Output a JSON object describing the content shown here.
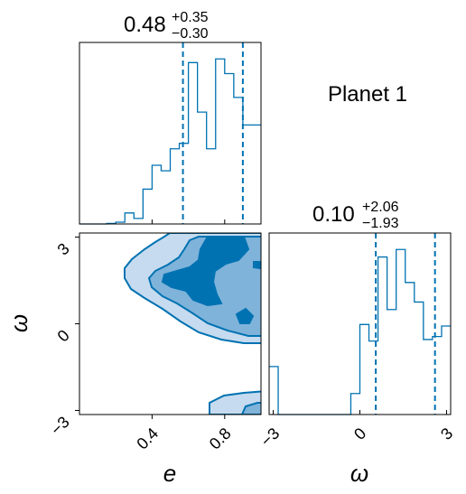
{
  "chart_data": {
    "type": "corner",
    "title": "Planet 1",
    "color": "#0072b2",
    "parameters": [
      {
        "name": "e",
        "xlabel": "e",
        "title_value": "0.48",
        "title_plus": "+0.35",
        "title_minus": "−0.30",
        "range": [
          0.0,
          1.0
        ],
        "ticks": [
          0.4,
          0.8
        ],
        "tick_labels": [
          "0.4",
          "0.8"
        ],
        "quantiles": [
          0.57,
          0.9
        ],
        "hist": {
          "edges": [
            0.0,
            0.05,
            0.1,
            0.15,
            0.2,
            0.25,
            0.3,
            0.35,
            0.4,
            0.45,
            0.5,
            0.55,
            0.6,
            0.65,
            0.7,
            0.75,
            0.8,
            0.85,
            0.9,
            0.95,
            1.0
          ],
          "counts": [
            0,
            0,
            0,
            0.003,
            0.01,
            0.06,
            0.03,
            0.19,
            0.32,
            0.29,
            0.41,
            0.44,
            0.88,
            0.61,
            0.41,
            0.9,
            0.82,
            0.69,
            0.54,
            0.54
          ]
        }
      },
      {
        "name": "ω",
        "xlabel": "ω",
        "ylabel": "ω",
        "title_value": "0.10",
        "title_plus": "+2.06",
        "title_minus": "−1.93",
        "range": [
          -3.142,
          3.142
        ],
        "ticks": [
          -3,
          0,
          3
        ],
        "tick_labels": [
          "−3",
          "0",
          "3"
        ],
        "quantiles": [
          0.55,
          2.6
        ],
        "hist": {
          "edges": [
            -3.142,
            -2.828,
            -2.513,
            -2.199,
            -1.885,
            -1.571,
            -1.257,
            -0.942,
            -0.628,
            -0.314,
            0.0,
            0.314,
            0.628,
            0.942,
            1.257,
            1.571,
            1.885,
            2.199,
            2.513,
            2.828,
            3.142
          ],
          "counts": [
            0.32,
            0,
            0,
            0,
            0,
            0,
            0,
            0,
            0,
            0.14,
            0.6,
            0.49,
            1.05,
            0.7,
            1.1,
            0.88,
            0.75,
            0.5,
            0.52,
            0.59
          ]
        }
      }
    ]
  }
}
